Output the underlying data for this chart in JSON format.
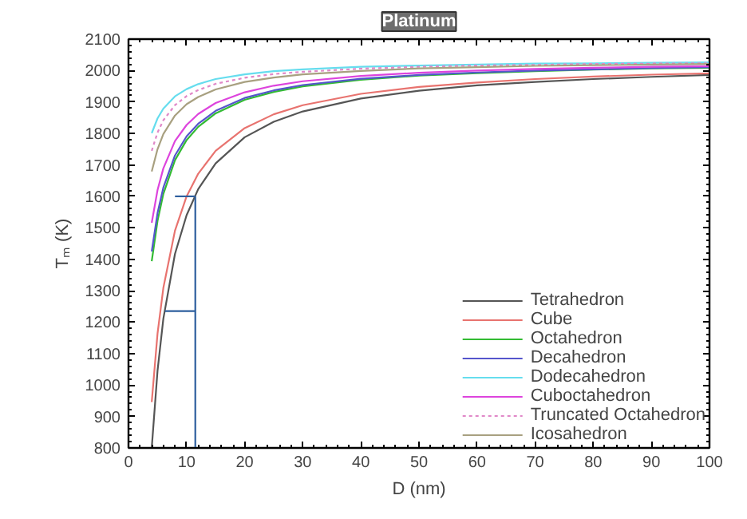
{
  "chart_data": {
    "type": "line",
    "title": "Platinum",
    "xlabel": "D (nm)",
    "ylabel": "Tₘ (K)",
    "x": [
      4,
      5,
      6,
      8,
      10,
      12,
      15,
      20,
      25,
      30,
      40,
      50,
      60,
      70,
      80,
      90,
      100
    ],
    "xlim": [
      0,
      100
    ],
    "xticks": [
      0,
      10,
      20,
      30,
      40,
      50,
      60,
      70,
      80,
      90,
      100
    ],
    "ylim": [
      800,
      2100
    ],
    "yticks": [
      800,
      900,
      1000,
      1100,
      1200,
      1300,
      1400,
      1500,
      1600,
      1700,
      1800,
      1900,
      2000,
      2100
    ],
    "grid": false,
    "legend": "bottom right",
    "line_style": "solid",
    "series": [
      {
        "name": "Tetrahedron",
        "color": "#555555",
        "values": [
          800,
          1046,
          1211,
          1417,
          1540,
          1623,
          1705,
          1788,
          1837,
          1870,
          1911,
          1936,
          1953,
          1964,
          1973,
          1980,
          1986
        ]
      },
      {
        "name": "Cube",
        "color": "#e8736f",
        "values": [
          946,
          1164,
          1309,
          1491,
          1600,
          1672,
          1745,
          1817,
          1861,
          1890,
          1926,
          1948,
          1962,
          1973,
          1981,
          1987,
          1991
        ]
      },
      {
        "name": "Octahedron",
        "color": "#33bb33",
        "values": [
          1394,
          1522,
          1608,
          1715,
          1779,
          1821,
          1864,
          1907,
          1932,
          1950,
          1971,
          1984,
          1992,
          1998,
          2003,
          2007,
          2009
        ]
      },
      {
        "name": "Decahedron",
        "color": "#5555cc",
        "values": [
          1425,
          1547,
          1628,
          1730,
          1791,
          1831,
          1872,
          1913,
          1937,
          1954,
          1974,
          1986,
          1994,
          2000,
          2004,
          2008,
          2011
        ]
      },
      {
        "name": "Dodecahedron",
        "color": "#66ddee",
        "values": [
          1801,
          1848,
          1879,
          1918,
          1941,
          1957,
          1973,
          1988,
          1998,
          2004,
          2012,
          2016,
          2019,
          2022,
          2023,
          2025,
          2026
        ]
      },
      {
        "name": "Cuboctahedron",
        "color": "#dd44dd",
        "values": [
          1516,
          1620,
          1689,
          1776,
          1827,
          1862,
          1897,
          1931,
          1952,
          1966,
          1983,
          1993,
          2000,
          2005,
          2009,
          2012,
          2014
        ]
      },
      {
        "name": "Truncated Octahedron",
        "color": "#e088c8",
        "line_style": "dotted",
        "values": [
          1745,
          1803,
          1842,
          1890,
          1919,
          1938,
          1958,
          1977,
          1989,
          1996,
          2006,
          2012,
          2016,
          2018,
          2021,
          2022,
          2023
        ]
      },
      {
        "name": "Icosahedron",
        "color": "#a8a080",
        "values": [
          1679,
          1750,
          1798,
          1857,
          1893,
          1916,
          1940,
          1964,
          1978,
          1988,
          1999,
          2007,
          2011,
          2015,
          2017,
          2019,
          2021
        ]
      },
      {
        "color": "#2e5f9e",
        "x": [
          11.5,
          11.5
        ],
        "values": [
          800,
          1600
        ]
      },
      {
        "color": "#2e5f9e",
        "x": [
          8,
          11.5
        ],
        "values": [
          1600,
          1600
        ]
      },
      {
        "color": "#2e5f9e",
        "x": [
          6.3,
          11.5
        ],
        "values": [
          1235,
          1235
        ]
      }
    ]
  }
}
